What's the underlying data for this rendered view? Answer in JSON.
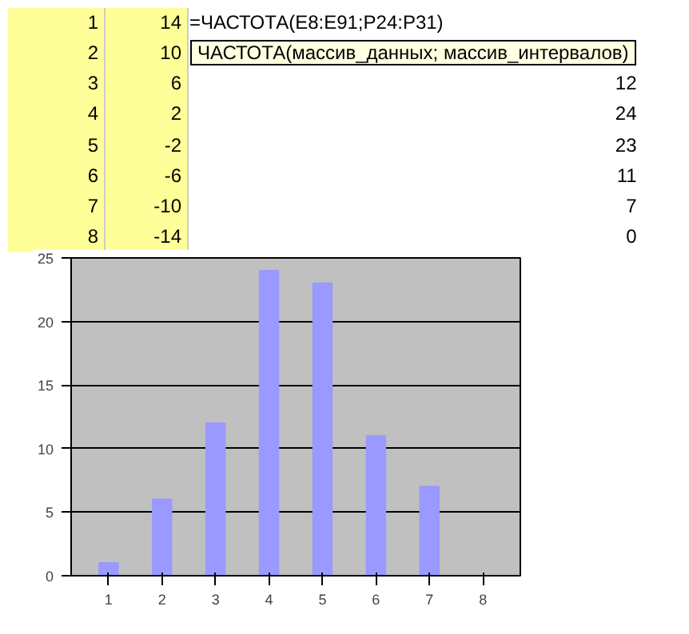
{
  "chart_data": {
    "type": "bar",
    "categories": [
      "1",
      "2",
      "3",
      "4",
      "5",
      "6",
      "7",
      "8"
    ],
    "values": [
      1,
      6,
      12,
      24,
      23,
      11,
      7,
      0
    ],
    "color": "#9999ff",
    "ylim": [
      0,
      25
    ],
    "yticks": [
      0,
      5,
      10,
      15,
      20,
      25
    ],
    "grid": "y",
    "annotations": [
      "1",
      "14",
      "2",
      "10",
      "3",
      "6",
      "4",
      "2",
      "5",
      "-2",
      "6",
      "-6",
      "7",
      "-10",
      "8",
      "-14",
      "=ЧАСТОТА(E8:E91;P24:P31)",
      "ЧАСТОТА(массив_данных; массив_интервалов)",
      "12",
      "24",
      "23",
      "11",
      "7",
      "0"
    ]
  }
}
